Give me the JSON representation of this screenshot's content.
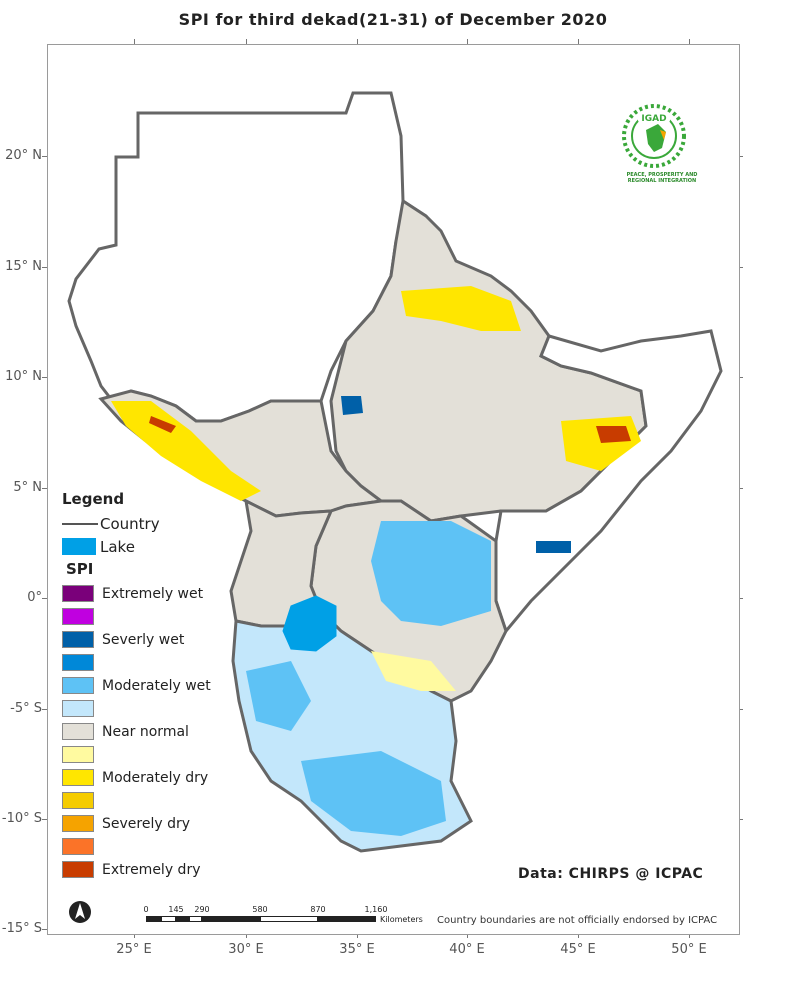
{
  "title": "SPI  for  third  dekad(21-31)  of December 2020",
  "lat_labels": [
    "20° N",
    "15° N",
    "10° N",
    "5° N",
    "0°",
    "-5° S",
    "-10° S",
    "-15° S"
  ],
  "lon_labels": [
    "25° E",
    "30° E",
    "35° E",
    "40° E",
    "45° E",
    "50° E"
  ],
  "legend": {
    "heading": "Legend",
    "country_label": "Country",
    "lake_label": "Lake",
    "spi_title": "SPI",
    "spi_classes": [
      {
        "label": "Extremely wet",
        "color": "#7a007a"
      },
      {
        "label": "",
        "color": "#c000e0"
      },
      {
        "label": "Severly wet",
        "color": "#0060a8"
      },
      {
        "label": "",
        "color": "#0088d8"
      },
      {
        "label": "Moderately wet",
        "color": "#5ec2f5"
      },
      {
        "label": "",
        "color": "#c3e7fb"
      },
      {
        "label": "Near normal",
        "color": "#e3e0d8"
      },
      {
        "label": "",
        "color": "#fffaa0"
      },
      {
        "label": "Moderately dry",
        "color": "#ffe600"
      },
      {
        "label": "",
        "color": "#f5cc00"
      },
      {
        "label": "Severely dry",
        "color": "#f5a300"
      },
      {
        "label": "",
        "color": "#fb7328"
      },
      {
        "label": "Extremely dry",
        "color": "#c83c00"
      }
    ]
  },
  "scale_bar": {
    "ticks": [
      "0",
      "145",
      "290",
      "580",
      "870",
      "1,160"
    ],
    "unit": "Kilometers"
  },
  "disclaimer": "Country boundaries are not officially endorsed by ICPAC",
  "data_credit": "Data: CHIRPS @ ICPAC",
  "logo": {
    "name": "IGAD",
    "tagline": "PEACE, PROSPERITY AND REGIONAL INTEGRATION"
  },
  "colors": {
    "country_border": "#666666",
    "lake": "#00a0e6",
    "near_normal": "#e3e0d8"
  }
}
